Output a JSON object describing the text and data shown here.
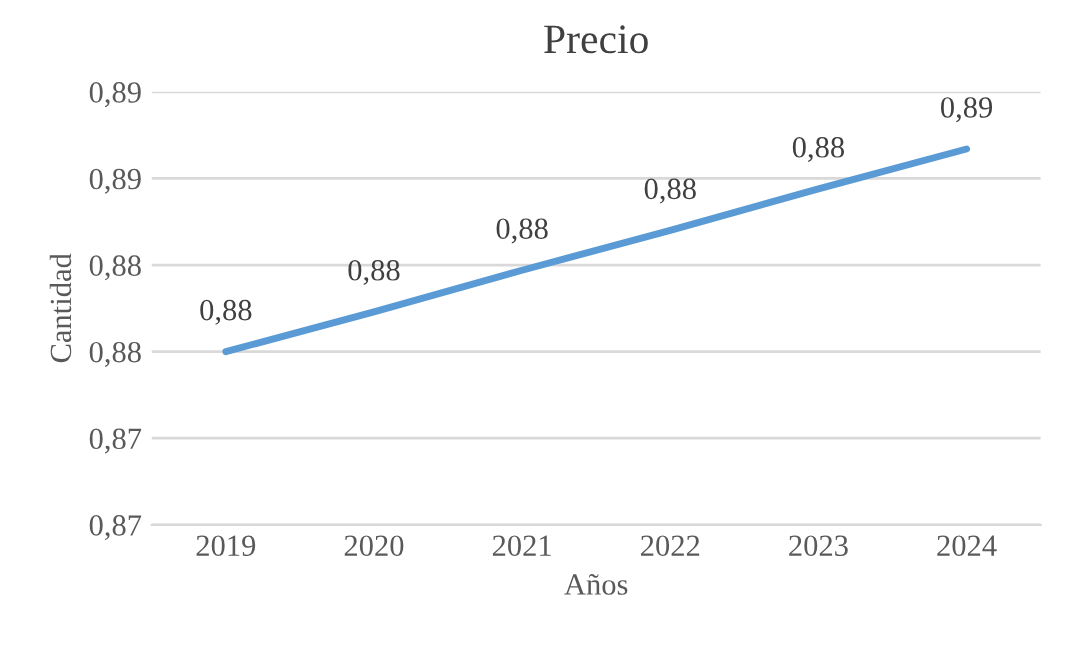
{
  "chart_data": {
    "type": "line",
    "title": "Precio",
    "xlabel": "Años",
    "ylabel": "Cantidad",
    "categories": [
      "2019",
      "2020",
      "2021",
      "2022",
      "2023",
      "2024"
    ],
    "series": [
      {
        "color": "#5b9bd5",
        "values": [
          0.875,
          0.8773,
          0.8797,
          0.882,
          0.8844,
          0.8867
        ],
        "value_labels": [
          "0,88",
          "0,88",
          "0,88",
          "0,88",
          "0,88",
          "0,89"
        ]
      }
    ],
    "ylim": [
      0.865,
      0.89
    ],
    "yticks": [
      {
        "value": 0.865,
        "label": "0,87"
      },
      {
        "value": 0.87,
        "label": "0,87"
      },
      {
        "value": 0.875,
        "label": "0,88"
      },
      {
        "value": 0.88,
        "label": "0,88"
      },
      {
        "value": 0.885,
        "label": "0,89"
      },
      {
        "value": 0.89,
        "label": "0,89"
      }
    ],
    "grid": "y",
    "line_style": "solid",
    "marker": "none"
  }
}
